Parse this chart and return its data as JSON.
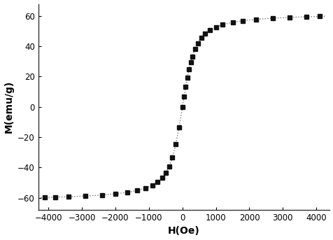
{
  "title": "",
  "xlabel": "H(Oe)",
  "ylabel": "M(emu/g)",
  "xlim": [
    -4300,
    4400
  ],
  "ylim": [
    -68,
    68
  ],
  "xticks": [
    -4000,
    -3000,
    -2000,
    -1000,
    0,
    1000,
    2000,
    3000,
    4000
  ],
  "yticks": [
    -60,
    -40,
    -20,
    0,
    20,
    40,
    60
  ],
  "Ms": 62.0,
  "a": 150,
  "background_color": "#ffffff",
  "line_color": "#777777",
  "line_style": ":",
  "marker_color": "#111111",
  "marker": "s",
  "marker_size": 4.5,
  "line_width": 1.0,
  "H_points_pos": [
    0,
    50,
    100,
    150,
    200,
    250,
    300,
    380,
    460,
    560,
    680,
    820,
    1000,
    1200,
    1500,
    1800,
    2200,
    2700,
    3200,
    3700,
    4100
  ],
  "H_points_neg": [
    -100,
    -200,
    -300,
    -400,
    -500,
    -600,
    -750,
    -900,
    -1100,
    -1350,
    -1650,
    -2000,
    -2400,
    -2900,
    -3400,
    -3800,
    -4100
  ]
}
